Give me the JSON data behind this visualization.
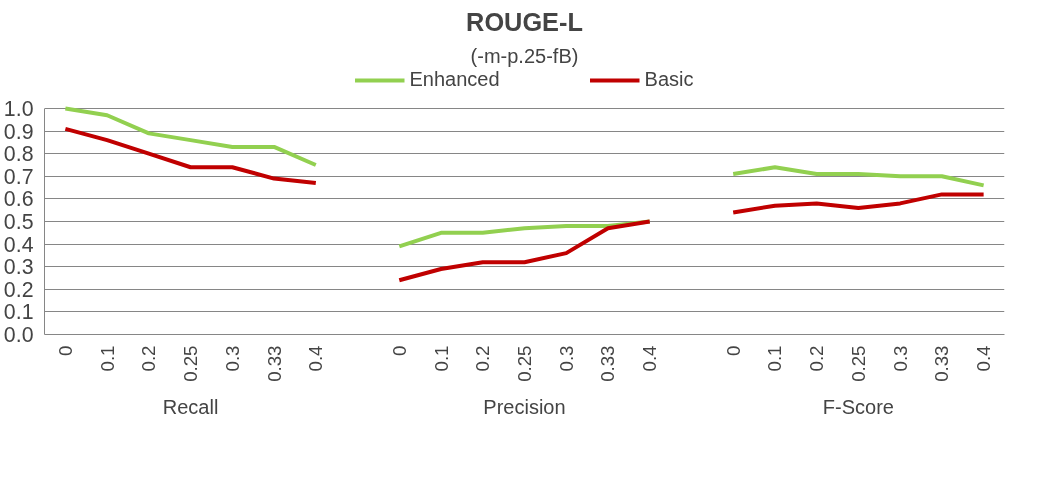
{
  "chart_data": {
    "type": "line",
    "title": "ROUGE-L",
    "subtitle": "(-m-p.25-fB)",
    "categories": [
      "0",
      "0.1",
      "0.2",
      "0.25",
      "0.3",
      "0.33",
      "0.4",
      null,
      "0",
      "0.1",
      "0.2",
      "0.25",
      "0.3",
      "0.33",
      "0.4",
      null,
      "0",
      "0.1",
      "0.2",
      "0.25",
      "0.3",
      "0.33",
      "0.4"
    ],
    "series": [
      {
        "name": "Enhanced",
        "color": "#92d050",
        "values": [
          1.0,
          0.97,
          0.89,
          0.86,
          0.83,
          0.83,
          0.75,
          null,
          0.39,
          0.45,
          0.45,
          0.47,
          0.48,
          0.48,
          0.5,
          null,
          0.71,
          0.74,
          0.71,
          0.71,
          0.7,
          0.7,
          0.66
        ]
      },
      {
        "name": "Basic",
        "color": "#c00000",
        "values": [
          0.91,
          0.86,
          0.8,
          0.74,
          0.74,
          0.69,
          0.67,
          null,
          0.24,
          0.29,
          0.32,
          0.32,
          0.36,
          0.47,
          0.5,
          null,
          0.54,
          0.57,
          0.58,
          0.56,
          0.58,
          0.62,
          0.62
        ]
      }
    ],
    "annotations": [
      "Recall",
      "Precision",
      "F-Score"
    ],
    "ylim": [
      0.0,
      1.0
    ],
    "yticks": [
      {
        "value": 0,
        "label": "0.0"
      },
      {
        "value": 0.1,
        "label": "0.1"
      },
      {
        "value": 0.2,
        "label": "0.2"
      },
      {
        "value": 0.3,
        "label": "0.3"
      },
      {
        "value": 0.4,
        "label": "0.4"
      },
      {
        "value": 0.5,
        "label": "0.5"
      },
      {
        "value": 0.6,
        "label": "0.6"
      },
      {
        "value": 0.7,
        "label": "0.7"
      },
      {
        "value": 0.8,
        "label": "0.8"
      },
      {
        "value": 0.9,
        "label": "0.9"
      },
      {
        "value": 1.0,
        "label": "1.0"
      }
    ],
    "grid": "y",
    "legend": "top",
    "marker": "none",
    "line_style": "solid"
  }
}
